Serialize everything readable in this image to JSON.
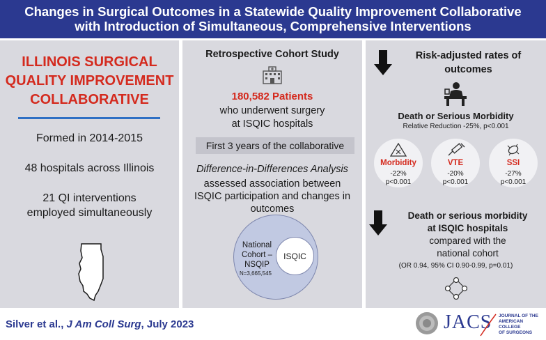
{
  "header": {
    "line1": "Changes in Surgical Outcomes in a Statewide Quality Improvement Collaborative",
    "line2": "with Introduction of Simultaneous, Comprehensive Interventions"
  },
  "left_panel": {
    "title_line1": "ILLINOIS SURGICAL",
    "title_line2": "QUALITY IMPROVEMENT",
    "title_line3": "COLLABORATIVE",
    "formed": "Formed in 2014-2015",
    "hospitals": "48 hospitals across Illinois",
    "qi_line1": "21 QI interventions",
    "qi_line2": "employed simultaneously"
  },
  "middle_panel": {
    "heading": "Retrospective Cohort Study",
    "patients": "180,582 Patients",
    "sub_line1": "who underwent surgery",
    "sub_line2": "at ISQIC hospitals",
    "first3": "First 3 years of the collaborative",
    "did": "Difference-in-Differences Analysis",
    "did_sub_line1": "assessed association between",
    "did_sub_line2": "ISQIC participation and changes in",
    "did_sub_line3": "outcomes",
    "venn_outer_line1": "National",
    "venn_outer_line2": "Cohort –",
    "venn_outer_line3": "NSQIP",
    "venn_outer_n": "N=3,665,545",
    "venn_inner": "ISQIC"
  },
  "right_panel": {
    "risk_line1": "Risk-adjusted rates of",
    "risk_line2": "outcomes",
    "dsm": "Death or Serious Morbidity",
    "rel_reduction": "Relative Reduction -25%, p<0.001",
    "outcomes": [
      {
        "label": "Morbidity",
        "change": "-22%",
        "p": "p<0.001"
      },
      {
        "label": "VTE",
        "change": "-20%",
        "p": "p<0.001"
      },
      {
        "label": "SSI",
        "change": "-27%",
        "p": "p<0.001"
      }
    ],
    "dsm2_line1": "Death or serious morbidity",
    "dsm2_line2": "at ISQIC hospitals",
    "compared_line1": "compared with the",
    "compared_line2": "national cohort",
    "or": "(OR 0.94, 95% CI 0.90-0.99, p=0.01)"
  },
  "footer": {
    "authors": "Silver et al., ",
    "journal": "J Am Coll Surg",
    "date": ", July 2023",
    "logo": "JACS",
    "logo_sub_line1": "JOURNAL OF THE",
    "logo_sub_line2": "AMERICAN COLLEGE",
    "logo_sub_line3": "OF SURGEONS"
  },
  "colors": {
    "header_bg": "#2b3990",
    "accent_red": "#d42a1e",
    "panel_bg": "#d9d9df"
  }
}
